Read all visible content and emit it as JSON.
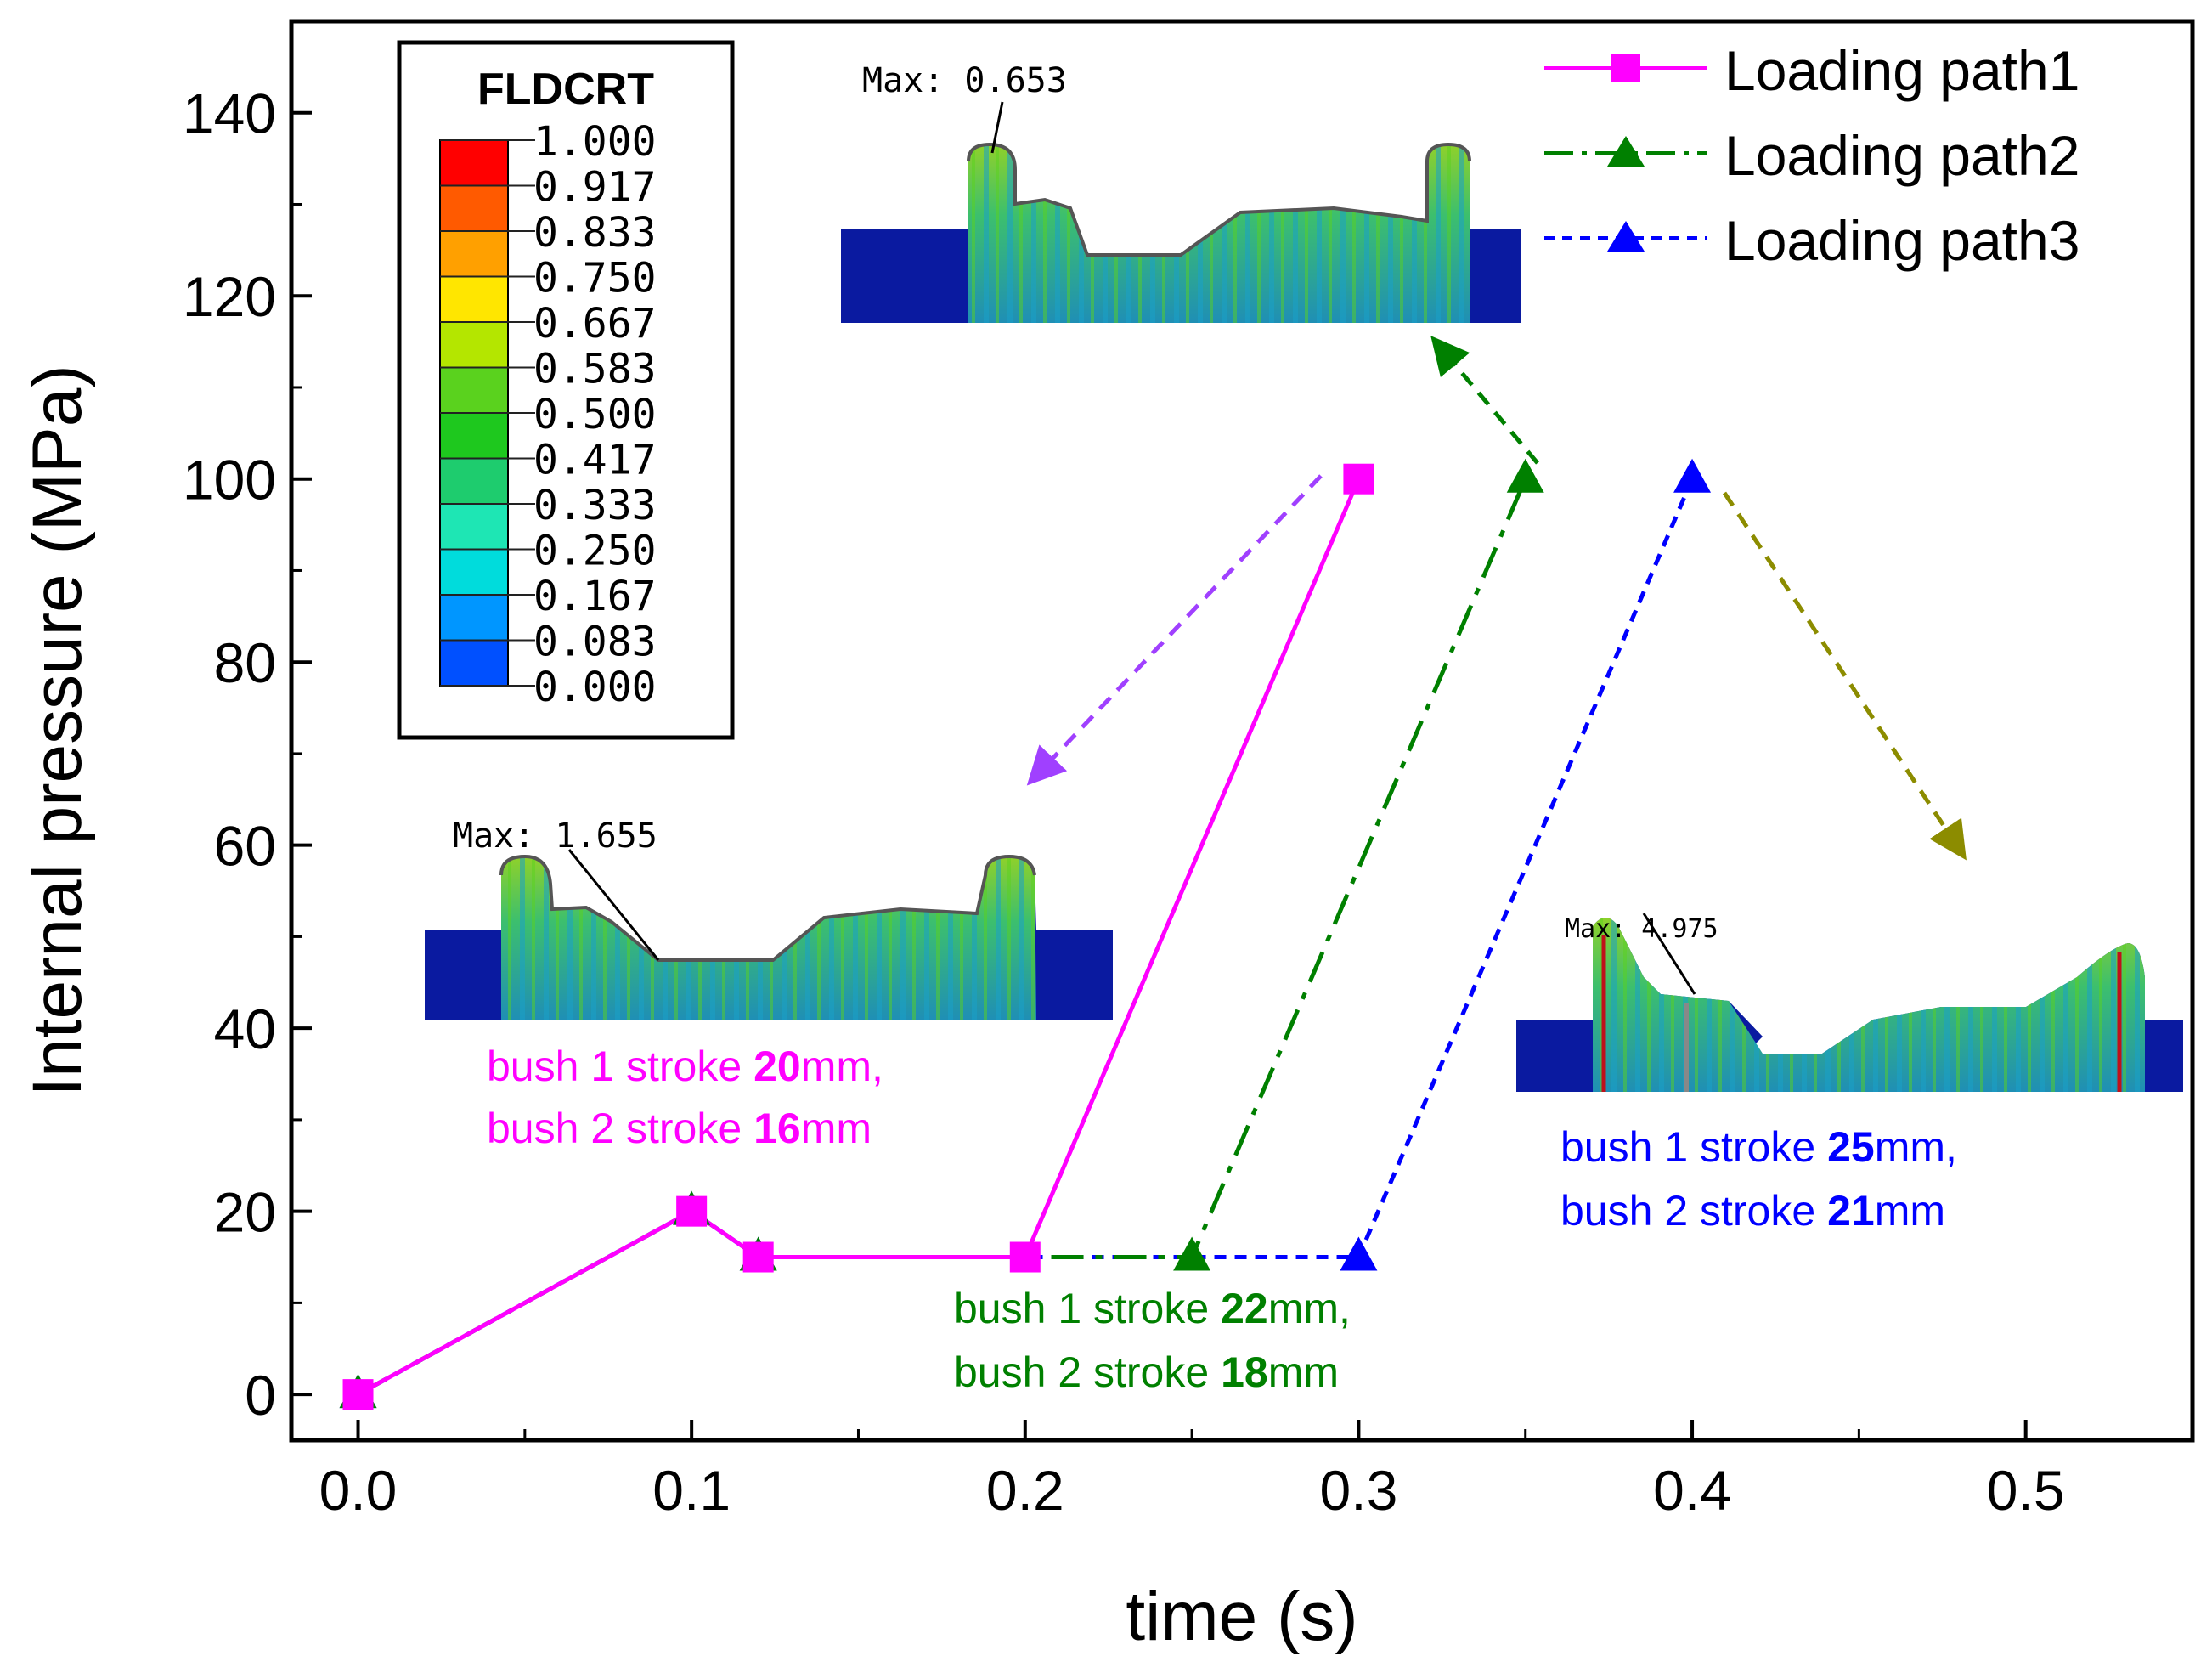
{
  "chart_data": {
    "type": "line",
    "xlabel": "time (s)",
    "ylabel": "Internal pressure (MPa)",
    "xlim": [
      -0.02,
      0.55
    ],
    "ylim": [
      -5,
      150
    ],
    "xticks": [
      "0.0",
      "0.1",
      "0.2",
      "0.3",
      "0.4",
      "0.5"
    ],
    "yticks": [
      "0",
      "20",
      "40",
      "60",
      "80",
      "100",
      "120",
      "140"
    ],
    "legend_position": "top-right",
    "series": [
      {
        "name": "Loading path1",
        "color": "#ff00ff",
        "marker": "square",
        "dash": "solid",
        "x": [
          0,
          0.1,
          0.12,
          0.2,
          0.3
        ],
        "y": [
          0,
          20,
          15,
          15,
          100
        ]
      },
      {
        "name": "Loading path2",
        "color": "#008000",
        "marker": "triangle",
        "dash": "dash-dot",
        "x": [
          0,
          0.1,
          0.12,
          0.25,
          0.35
        ],
        "y": [
          0,
          20,
          15,
          15,
          100
        ]
      },
      {
        "name": "Loading path3",
        "color": "#0000ff",
        "marker": "triangle",
        "dash": "dashed",
        "x": [
          0,
          0.1,
          0.12,
          0.3,
          0.4
        ],
        "y": [
          0,
          20,
          15,
          15,
          100
        ]
      }
    ],
    "colorbar": {
      "title": "FLDCRT",
      "labels": [
        "1.000",
        "0.917",
        "0.833",
        "0.750",
        "0.667",
        "0.583",
        "0.500",
        "0.417",
        "0.333",
        "0.250",
        "0.167",
        "0.083",
        "0.000"
      ],
      "colors": [
        "#ff0000",
        "#ff5a00",
        "#ffa000",
        "#ffe600",
        "#b4e600",
        "#5ad21e",
        "#1ec81e",
        "#1ecc6e",
        "#1ee6b4",
        "#00dcdc",
        "#0096ff",
        "#0050ff",
        "#0000ff"
      ]
    },
    "annotations": {
      "max_path1": "Max: 1.655",
      "max_path2": "Max: 0.653",
      "max_path3": "Max: 4.975",
      "path1_line1_a": "bush 1 stroke ",
      "path1_line1_b": "20",
      "path1_line1_c": "mm,",
      "path1_line2_a": "bush 2 stroke ",
      "path1_line2_b": "16",
      "path1_line2_c": "mm",
      "path2_line1_a": "bush 1 stroke ",
      "path2_line1_b": "22",
      "path2_line1_c": "mm,",
      "path2_line2_a": "bush 2 stroke ",
      "path2_line2_b": "18",
      "path2_line2_c": "mm",
      "path3_line1_a": "bush 1 stroke ",
      "path3_line1_b": "25",
      "path3_line1_c": "mm,",
      "path3_line2_a": "bush 2 stroke ",
      "path3_line2_b": "21",
      "path3_line2_c": "mm"
    }
  }
}
